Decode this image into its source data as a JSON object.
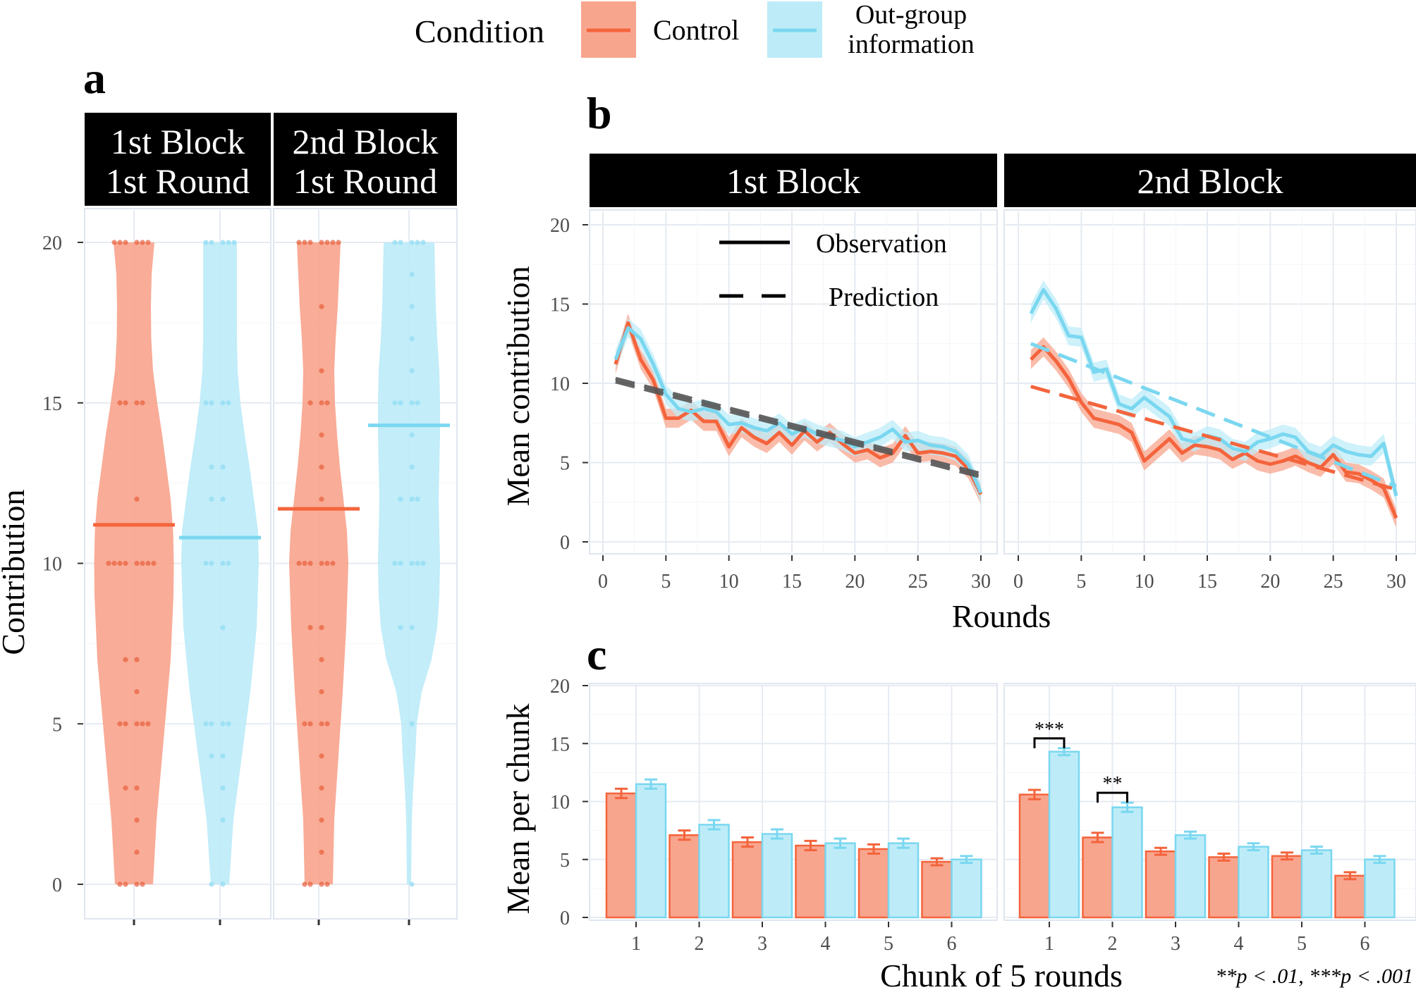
{
  "legend": {
    "title": "Condition",
    "items": [
      {
        "label": "Control",
        "color": "#f4643c",
        "fill": "#f8a58e"
      },
      {
        "label_line1": "Out-group",
        "label_line2": "information",
        "color": "#7ad7f0",
        "fill": "#bdecf8"
      }
    ]
  },
  "panels": {
    "a": "a",
    "b": "b",
    "c": "c"
  },
  "chart_data": [
    {
      "id": "a",
      "type": "violin",
      "facets": [
        {
          "line1": "1st Block",
          "line2": "1st Round"
        },
        {
          "line1": "2nd Block",
          "line2": "1st Round"
        }
      ],
      "ylabel": "Contribution",
      "ylim": [
        0,
        20
      ],
      "yticks": [
        "0",
        "5",
        "10",
        "15",
        "20"
      ],
      "means": [
        {
          "facet": 0,
          "condition": "Control",
          "value": 11.2
        },
        {
          "facet": 0,
          "condition": "Out-group information",
          "value": 10.8
        },
        {
          "facet": 1,
          "condition": "Control",
          "value": 11.7
        },
        {
          "facet": 1,
          "condition": "Out-group information",
          "value": 14.3
        }
      ],
      "points": [
        {
          "facet": 0,
          "condition": "Control",
          "values": [
            0,
            0,
            0,
            0,
            1,
            2,
            3,
            3,
            5,
            5,
            5,
            5,
            5,
            6,
            7,
            7,
            10,
            10,
            10,
            10,
            10,
            10,
            10,
            10,
            12,
            15,
            15,
            15,
            15,
            20,
            20,
            20,
            20,
            20,
            20
          ]
        },
        {
          "facet": 0,
          "condition": "Out-group information",
          "values": [
            0,
            0,
            2,
            3,
            4,
            4,
            5,
            5,
            5,
            5,
            8,
            10,
            10,
            10,
            10,
            12,
            12,
            13,
            13,
            15,
            15,
            15,
            15,
            20,
            20,
            20,
            20,
            20
          ]
        },
        {
          "facet": 1,
          "condition": "Control",
          "values": [
            0,
            0,
            0,
            0,
            1,
            2,
            3,
            4,
            5,
            5,
            5,
            5,
            6,
            7,
            8,
            8,
            10,
            10,
            10,
            10,
            10,
            10,
            12,
            13,
            14,
            15,
            15,
            15,
            16,
            18,
            20,
            20,
            20,
            20,
            20,
            20,
            20
          ]
        },
        {
          "facet": 1,
          "condition": "Out-group information",
          "values": [
            0,
            5,
            8,
            8,
            10,
            10,
            10,
            10,
            10,
            12,
            12,
            12,
            13,
            14,
            15,
            15,
            15,
            15,
            16,
            17,
            18,
            19,
            20,
            20,
            20,
            20,
            20
          ]
        }
      ]
    },
    {
      "id": "b",
      "type": "line",
      "facets": [
        "1st Block",
        "2nd Block"
      ],
      "xlabel": "Rounds",
      "ylabel": "Mean contribution",
      "xlim": [
        0,
        30
      ],
      "ylim": [
        0,
        20
      ],
      "xticks": [
        "0",
        "5",
        "10",
        "15",
        "20",
        "25",
        "30"
      ],
      "yticks": [
        "0",
        "5",
        "10",
        "15",
        "20"
      ],
      "linetype_legend": [
        "Observation",
        "Prediction"
      ],
      "observation": [
        {
          "facet": 0,
          "condition": "Control",
          "x": [
            1,
            2,
            3,
            4,
            5,
            6,
            7,
            8,
            9,
            10,
            11,
            12,
            13,
            14,
            15,
            16,
            17,
            18,
            19,
            20,
            21,
            22,
            23,
            24,
            25,
            26,
            27,
            28,
            29,
            30
          ],
          "y": [
            11.2,
            13.8,
            11.5,
            10.2,
            7.8,
            7.8,
            8.3,
            7.6,
            7.6,
            6.0,
            7.2,
            6.6,
            6.2,
            6.9,
            6.1,
            7.0,
            6.3,
            6.9,
            6.2,
            5.6,
            5.8,
            5.3,
            5.6,
            6.7,
            5.6,
            5.7,
            5.6,
            5.4,
            4.6,
            3.0
          ]
        },
        {
          "facet": 0,
          "condition": "Out-group information",
          "x": [
            1,
            2,
            3,
            4,
            5,
            6,
            7,
            8,
            9,
            10,
            11,
            12,
            13,
            14,
            15,
            16,
            17,
            18,
            19,
            20,
            21,
            22,
            23,
            24,
            25,
            26,
            27,
            28,
            29,
            30
          ],
          "y": [
            11.5,
            13.5,
            12.8,
            11.2,
            9.3,
            8.4,
            8.2,
            8.4,
            8.2,
            7.4,
            7.5,
            7.2,
            7.0,
            7.5,
            6.8,
            7.2,
            6.8,
            6.6,
            6.4,
            6.0,
            6.3,
            6.6,
            7.1,
            6.3,
            6.4,
            6.1,
            6.0,
            5.7,
            4.9,
            3.1
          ]
        },
        {
          "facet": 1,
          "condition": "Control",
          "x": [
            1,
            2,
            3,
            4,
            5,
            6,
            7,
            8,
            9,
            10,
            11,
            12,
            13,
            14,
            15,
            16,
            17,
            18,
            19,
            20,
            21,
            22,
            23,
            24,
            25,
            26,
            27,
            28,
            29,
            30
          ],
          "y": [
            11.5,
            12.3,
            11.4,
            10.3,
            8.8,
            7.8,
            7.6,
            7.4,
            6.9,
            5.1,
            5.8,
            6.5,
            5.6,
            6.1,
            6.0,
            5.8,
            5.2,
            5.6,
            5.1,
            4.9,
            5.1,
            5.4,
            5.0,
            4.7,
            5.5,
            4.4,
            4.3,
            3.9,
            3.4,
            1.5
          ]
        },
        {
          "facet": 1,
          "condition": "Out-group information",
          "x": [
            1,
            2,
            3,
            4,
            5,
            6,
            7,
            8,
            9,
            10,
            11,
            12,
            13,
            14,
            15,
            16,
            17,
            18,
            19,
            20,
            21,
            22,
            23,
            24,
            25,
            26,
            27,
            28,
            29,
            30
          ],
          "y": [
            14.4,
            15.9,
            14.7,
            13.0,
            12.9,
            10.7,
            10.9,
            8.7,
            8.4,
            9.1,
            8.5,
            7.9,
            6.5,
            6.3,
            6.7,
            6.5,
            5.9,
            5.7,
            6.3,
            6.5,
            6.8,
            6.6,
            5.7,
            5.4,
            6.1,
            5.7,
            5.5,
            5.4,
            6.2,
            2.9
          ]
        }
      ],
      "prediction": [
        {
          "facet": 0,
          "condition": "Control",
          "x": [
            1,
            30
          ],
          "y": [
            10.1,
            4.1
          ]
        },
        {
          "facet": 0,
          "condition": "Out-group information",
          "x": [
            1,
            30
          ],
          "y": [
            10.3,
            4.3
          ]
        },
        {
          "facet": 1,
          "condition": "Control",
          "x": [
            1,
            30
          ],
          "y": [
            9.8,
            3.3
          ]
        },
        {
          "facet": 1,
          "condition": "Out-group information",
          "x": [
            1,
            30
          ],
          "y": [
            12.5,
            3.5
          ]
        }
      ]
    },
    {
      "id": "c",
      "type": "bar",
      "facets": [
        "1st Block",
        "2nd Block"
      ],
      "xlabel": "Chunk of 5 rounds",
      "ylabel": "Mean per chunk",
      "categories": [
        "1",
        "2",
        "3",
        "4",
        "5",
        "6"
      ],
      "ylim": [
        0,
        20
      ],
      "yticks": [
        "0",
        "5",
        "10",
        "15",
        "20"
      ],
      "series": [
        {
          "facet": 0,
          "name": "Control",
          "values": [
            10.7,
            7.1,
            6.5,
            6.2,
            5.9,
            4.8
          ],
          "err": [
            0.4,
            0.4,
            0.4,
            0.4,
            0.4,
            0.3
          ]
        },
        {
          "facet": 0,
          "name": "Out-group information",
          "values": [
            11.5,
            8.0,
            7.2,
            6.4,
            6.4,
            5.0
          ],
          "err": [
            0.4,
            0.4,
            0.4,
            0.4,
            0.4,
            0.3
          ]
        },
        {
          "facet": 1,
          "name": "Control",
          "values": [
            10.6,
            6.9,
            5.7,
            5.2,
            5.3,
            3.6
          ],
          "err": [
            0.4,
            0.4,
            0.3,
            0.3,
            0.3,
            0.3
          ]
        },
        {
          "facet": 1,
          "name": "Out-group information",
          "values": [
            14.3,
            9.5,
            7.1,
            6.1,
            5.8,
            5.0
          ],
          "err": [
            0.3,
            0.4,
            0.3,
            0.3,
            0.3,
            0.3
          ]
        }
      ],
      "significance": [
        {
          "facet": 1,
          "category": "1",
          "label": "***"
        },
        {
          "facet": 1,
          "category": "2",
          "label": "**"
        }
      ],
      "footnote": "**p < .01, ***p < .001"
    }
  ]
}
